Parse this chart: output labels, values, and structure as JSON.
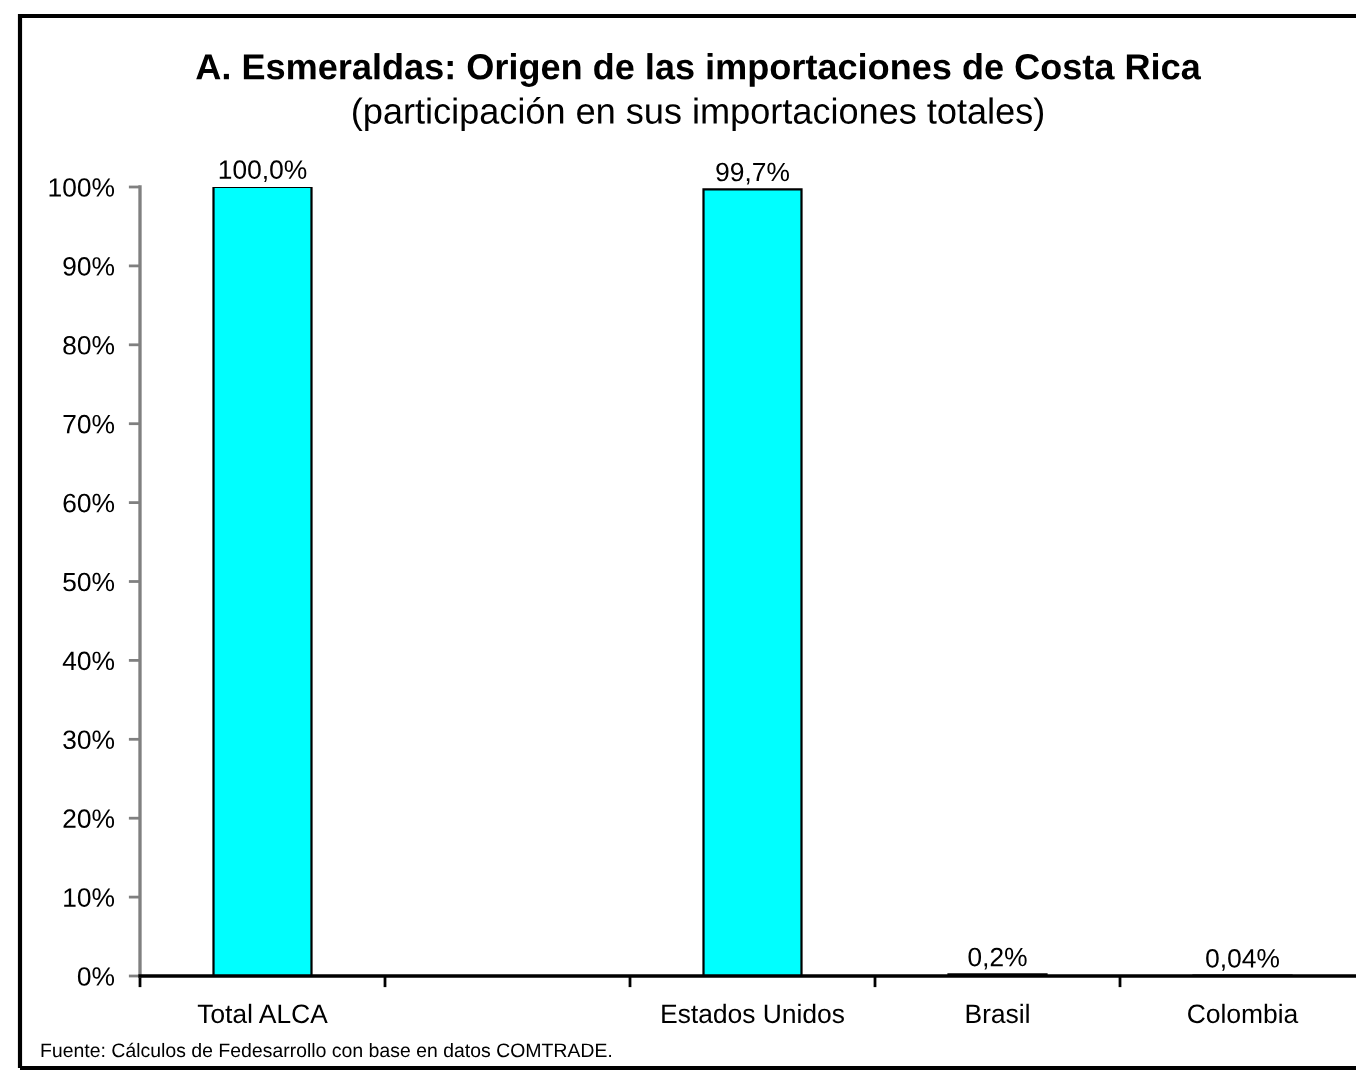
{
  "chart_data": {
    "type": "bar",
    "title": "A. Esmeraldas: Origen de las importaciones de Costa Rica",
    "subtitle": "(participación en sus importaciones totales)",
    "categories": [
      "Total ALCA",
      null,
      "Estados Unidos",
      "Brasil",
      "Colombia"
    ],
    "values": [
      100,
      null,
      99.7,
      0.2,
      0.04
    ],
    "value_labels": [
      "100,0%",
      null,
      "99,7%",
      "0,2%",
      "0,04%"
    ],
    "color": "#00ffff",
    "ylim": [
      0,
      100
    ],
    "yticks": [
      {
        "value": 0,
        "label": "0%"
      },
      {
        "value": 10,
        "label": "10%"
      },
      {
        "value": 20,
        "label": "20%"
      },
      {
        "value": 30,
        "label": "30%"
      },
      {
        "value": 40,
        "label": "40%"
      },
      {
        "value": 50,
        "label": "50%"
      },
      {
        "value": 60,
        "label": "60%"
      },
      {
        "value": 70,
        "label": "70%"
      },
      {
        "value": 80,
        "label": "80%"
      },
      {
        "value": 90,
        "label": "90%"
      },
      {
        "value": 100,
        "label": "100%"
      }
    ],
    "annotations": [
      "Fuente: Cálculos de Fedesarrollo con base en datos COMTRADE."
    ]
  }
}
